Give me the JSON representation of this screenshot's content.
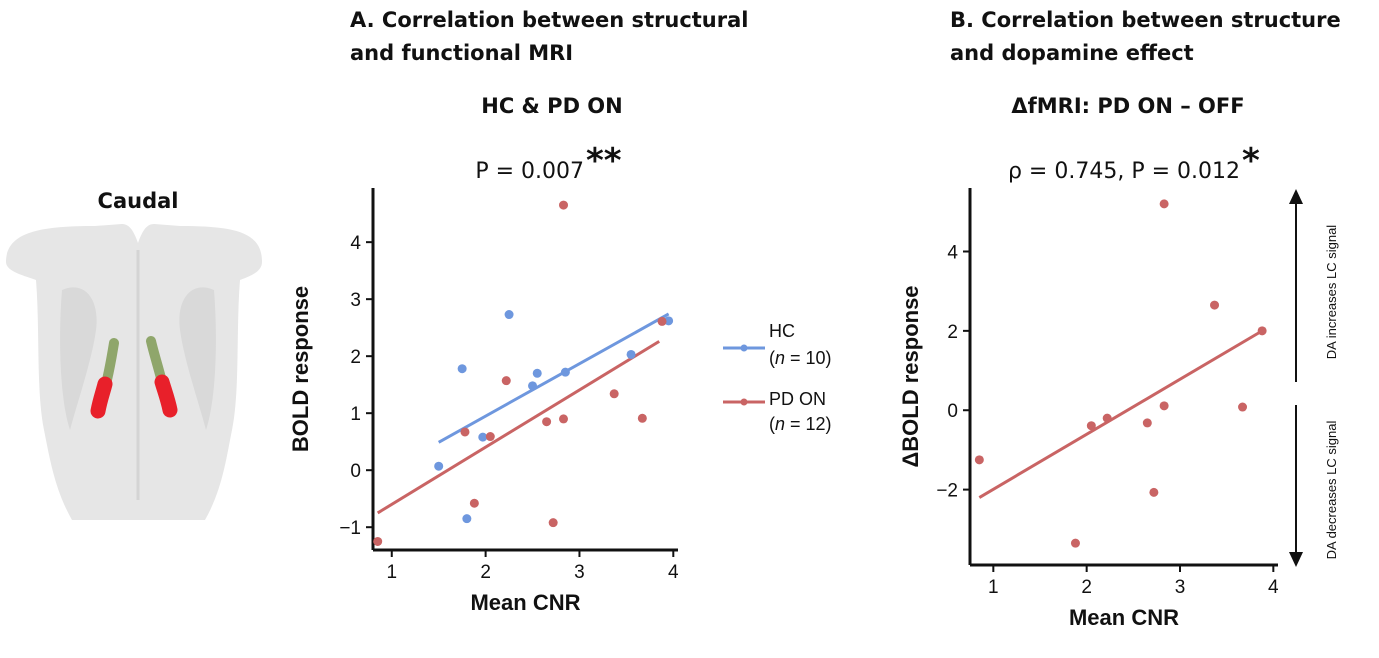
{
  "brain": {
    "label": "Caudal",
    "colors": {
      "tissue": "#e6e6e6",
      "tract": "#8fa66b",
      "region": "#e8202a"
    }
  },
  "panelA": {
    "heading_line1": "A. Correlation between structural",
    "heading_line2": "and functional MRI",
    "subtitle": "HC & PD ON",
    "stat": "P = 0.007",
    "stars": "**",
    "legend": [
      {
        "name": "HC",
        "n_prefix": "(",
        "n_symbol": "n",
        "n_suffix": " = 10)"
      },
      {
        "name": "PD ON",
        "n_prefix": "(",
        "n_symbol": "n",
        "n_suffix": " = 12)"
      }
    ]
  },
  "panelB": {
    "heading_line1": "B. Correlation between structure",
    "heading_line2": "and dopamine effect",
    "subtitle": "ΔfMRI: PD ON – OFF",
    "stat": "ρ = 0.745, P = 0.012",
    "stars": "*",
    "arrow_up_label": "DA increases LC signal",
    "arrow_down_label": "DA decreases LC signal"
  },
  "chart_data": [
    {
      "type": "scatter",
      "title": "HC & PD ON",
      "xlabel": "Mean CNR",
      "ylabel": "BOLD response",
      "xlim": [
        0.8,
        4.05
      ],
      "ylim": [
        -1.4,
        4.95
      ],
      "xticks": [
        1,
        2,
        3,
        4
      ],
      "yticks": [
        -1,
        0,
        1,
        2,
        3,
        4
      ],
      "series": [
        {
          "name": "HC",
          "color": "#6e97de",
          "x": [
            1.5,
            1.75,
            1.8,
            1.97,
            2.25,
            2.5,
            2.55,
            2.85,
            3.55,
            3.95
          ],
          "y": [
            0.07,
            1.78,
            -0.85,
            0.58,
            2.73,
            1.48,
            1.7,
            1.72,
            2.03,
            2.62
          ],
          "fit": [
            [
              1.5,
              0.49
            ],
            [
              3.95,
              2.74
            ]
          ]
        },
        {
          "name": "PD ON",
          "color": "#c96464",
          "x": [
            0.85,
            1.78,
            1.88,
            2.05,
            2.22,
            2.65,
            2.72,
            2.83,
            2.83,
            3.37,
            3.67,
            3.88
          ],
          "y": [
            -1.25,
            0.67,
            -0.58,
            0.59,
            1.57,
            0.85,
            -0.92,
            0.9,
            4.65,
            1.34,
            0.91,
            2.61
          ],
          "fit": [
            [
              0.85,
              -0.75
            ],
            [
              3.85,
              2.26
            ]
          ]
        }
      ]
    },
    {
      "type": "scatter",
      "title": "ΔfMRI: PD ON – OFF",
      "xlabel": "Mean CNR",
      "ylabel": "ΔBOLD response",
      "xlim": [
        0.75,
        4.05
      ],
      "ylim": [
        -3.9,
        5.6
      ],
      "xticks": [
        1,
        2,
        3,
        4
      ],
      "yticks": [
        -2,
        0,
        2,
        4
      ],
      "series": [
        {
          "name": "PD ON – OFF",
          "color": "#c96464",
          "x": [
            0.85,
            1.88,
            2.05,
            2.22,
            2.65,
            2.72,
            2.83,
            2.83,
            3.37,
            3.67,
            3.88
          ],
          "y": [
            -1.25,
            -3.35,
            -0.39,
            -0.2,
            -0.32,
            -2.07,
            0.11,
            5.2,
            2.65,
            0.08,
            2.0
          ],
          "fit": [
            [
              0.85,
              -2.2
            ],
            [
              3.88,
              2.0
            ]
          ]
        }
      ]
    }
  ]
}
